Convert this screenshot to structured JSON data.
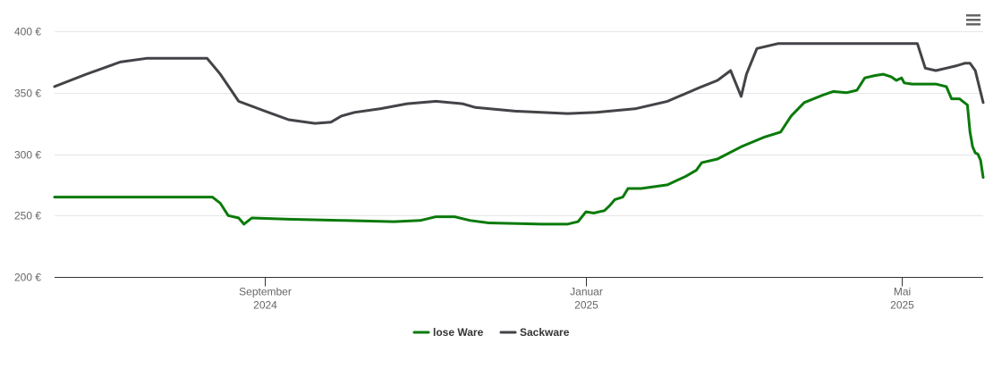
{
  "chart_data": {
    "type": "line",
    "title": "",
    "xlabel": "",
    "ylabel": "",
    "ylim": [
      200,
      400
    ],
    "yticks": [
      {
        "value": 400,
        "label": "400 €"
      },
      {
        "value": 350,
        "label": "350 €"
      },
      {
        "value": 300,
        "label": "300 €"
      },
      {
        "value": 250,
        "label": "250 €"
      },
      {
        "value": 200,
        "label": "200 €"
      }
    ],
    "xlim": [
      "2024-06-13",
      "2025-06-01"
    ],
    "xticks": [
      {
        "date": "2024-09-01",
        "line1": "September",
        "line2": "2024"
      },
      {
        "date": "2025-01-01",
        "line1": "Januar",
        "line2": "2025"
      },
      {
        "date": "2025-05-01",
        "line1": "Mai",
        "line2": "2025"
      }
    ],
    "grid": true,
    "legend": "bottom-center",
    "series": [
      {
        "name": "lose Ware",
        "color": "#0a7a0a",
        "points": [
          [
            "2024-06-13",
            265
          ],
          [
            "2024-07-15",
            265
          ],
          [
            "2024-08-01",
            265
          ],
          [
            "2024-08-12",
            265
          ],
          [
            "2024-08-15",
            260
          ],
          [
            "2024-08-18",
            250
          ],
          [
            "2024-08-22",
            248
          ],
          [
            "2024-08-24",
            243
          ],
          [
            "2024-08-27",
            248
          ],
          [
            "2024-09-10",
            247
          ],
          [
            "2024-10-01",
            246
          ],
          [
            "2024-10-20",
            245
          ],
          [
            "2024-10-30",
            246
          ],
          [
            "2024-11-05",
            249
          ],
          [
            "2024-11-12",
            249
          ],
          [
            "2024-11-18",
            246
          ],
          [
            "2024-11-25",
            244
          ],
          [
            "2024-12-15",
            243
          ],
          [
            "2024-12-25",
            243
          ],
          [
            "2024-12-29",
            245
          ],
          [
            "2025-01-01",
            253
          ],
          [
            "2025-01-04",
            252
          ],
          [
            "2025-01-06",
            253
          ],
          [
            "2025-01-08",
            254
          ],
          [
            "2025-01-10",
            258
          ],
          [
            "2025-01-12",
            263
          ],
          [
            "2025-01-15",
            265
          ],
          [
            "2025-01-17",
            272
          ],
          [
            "2025-01-22",
            272
          ],
          [
            "2025-02-01",
            275
          ],
          [
            "2025-02-08",
            282
          ],
          [
            "2025-02-12",
            287
          ],
          [
            "2025-02-14",
            293
          ],
          [
            "2025-02-20",
            296
          ],
          [
            "2025-03-01",
            306
          ],
          [
            "2025-03-10",
            314
          ],
          [
            "2025-03-16",
            318
          ],
          [
            "2025-03-20",
            331
          ],
          [
            "2025-03-25",
            342
          ],
          [
            "2025-04-01",
            348
          ],
          [
            "2025-04-05",
            351
          ],
          [
            "2025-04-10",
            350
          ],
          [
            "2025-04-14",
            352
          ],
          [
            "2025-04-17",
            362
          ],
          [
            "2025-04-21",
            364
          ],
          [
            "2025-04-24",
            365
          ],
          [
            "2025-04-27",
            363
          ],
          [
            "2025-04-29",
            360
          ],
          [
            "2025-05-01",
            362
          ],
          [
            "2025-05-02",
            358
          ],
          [
            "2025-05-05",
            357
          ],
          [
            "2025-05-10",
            357
          ],
          [
            "2025-05-14",
            357
          ],
          [
            "2025-05-18",
            355
          ],
          [
            "2025-05-20",
            345
          ],
          [
            "2025-05-23",
            345
          ],
          [
            "2025-05-26",
            340
          ],
          [
            "2025-05-27",
            318
          ],
          [
            "2025-05-28",
            306
          ],
          [
            "2025-05-29",
            301
          ],
          [
            "2025-05-30",
            300
          ],
          [
            "2025-05-31",
            295
          ],
          [
            "2025-06-01",
            281
          ]
        ]
      },
      {
        "name": "Sackware",
        "color": "#434348",
        "points": [
          [
            "2024-06-13",
            355
          ],
          [
            "2024-06-25",
            365
          ],
          [
            "2024-07-08",
            375
          ],
          [
            "2024-07-18",
            378
          ],
          [
            "2024-07-28",
            378
          ],
          [
            "2024-08-05",
            378
          ],
          [
            "2024-08-10",
            378
          ],
          [
            "2024-08-15",
            365
          ],
          [
            "2024-08-22",
            343
          ],
          [
            "2024-09-01",
            335
          ],
          [
            "2024-09-10",
            328
          ],
          [
            "2024-09-20",
            325
          ],
          [
            "2024-09-26",
            326
          ],
          [
            "2024-09-30",
            331
          ],
          [
            "2024-10-05",
            334
          ],
          [
            "2024-10-15",
            337
          ],
          [
            "2024-10-25",
            341
          ],
          [
            "2024-11-05",
            343
          ],
          [
            "2024-11-15",
            341
          ],
          [
            "2024-11-20",
            338
          ],
          [
            "2024-12-05",
            335
          ],
          [
            "2024-12-25",
            333
          ],
          [
            "2025-01-05",
            334
          ],
          [
            "2025-01-20",
            337
          ],
          [
            "2025-02-01",
            343
          ],
          [
            "2025-02-13",
            354
          ],
          [
            "2025-02-20",
            360
          ],
          [
            "2025-02-25",
            368
          ],
          [
            "2025-03-01",
            347
          ],
          [
            "2025-03-03",
            365
          ],
          [
            "2025-03-07",
            386
          ],
          [
            "2025-03-15",
            390
          ],
          [
            "2025-04-01",
            390
          ],
          [
            "2025-04-20",
            390
          ],
          [
            "2025-05-07",
            390
          ],
          [
            "2025-05-10",
            370
          ],
          [
            "2025-05-14",
            368
          ],
          [
            "2025-05-18",
            370
          ],
          [
            "2025-05-22",
            372
          ],
          [
            "2025-05-25",
            374
          ],
          [
            "2025-05-27",
            374
          ],
          [
            "2025-05-29",
            368
          ],
          [
            "2025-06-01",
            342
          ]
        ]
      }
    ]
  },
  "icons": {
    "menu": "hamburger-menu-icon"
  }
}
